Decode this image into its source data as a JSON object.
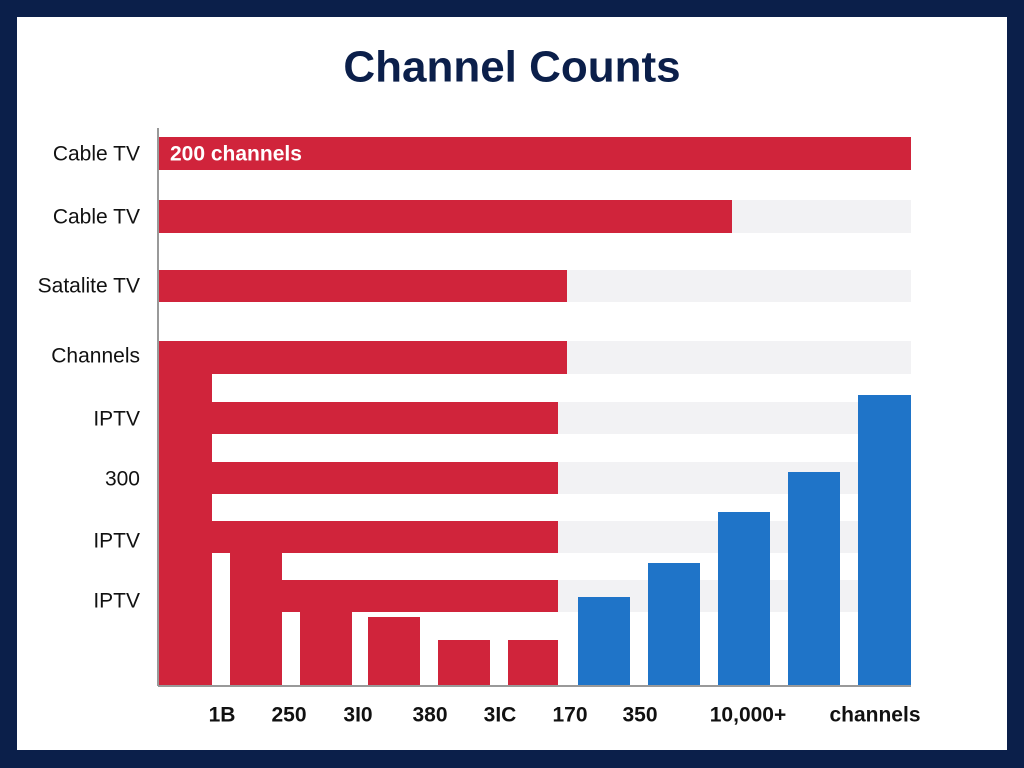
{
  "chart_data": {
    "type": "infographic",
    "title": "Channel Counts",
    "annotation": "200 channels",
    "row_labels": [
      "Cable TV",
      "Cable TV",
      "Satalite TV",
      "Channels",
      "IPTV",
      "300",
      "IPTV",
      "IPTV"
    ],
    "x_labels": [
      "1B",
      "250",
      "3I0",
      "380",
      "3IC",
      "170",
      "350",
      "10,000+",
      "channels"
    ]
  }
}
